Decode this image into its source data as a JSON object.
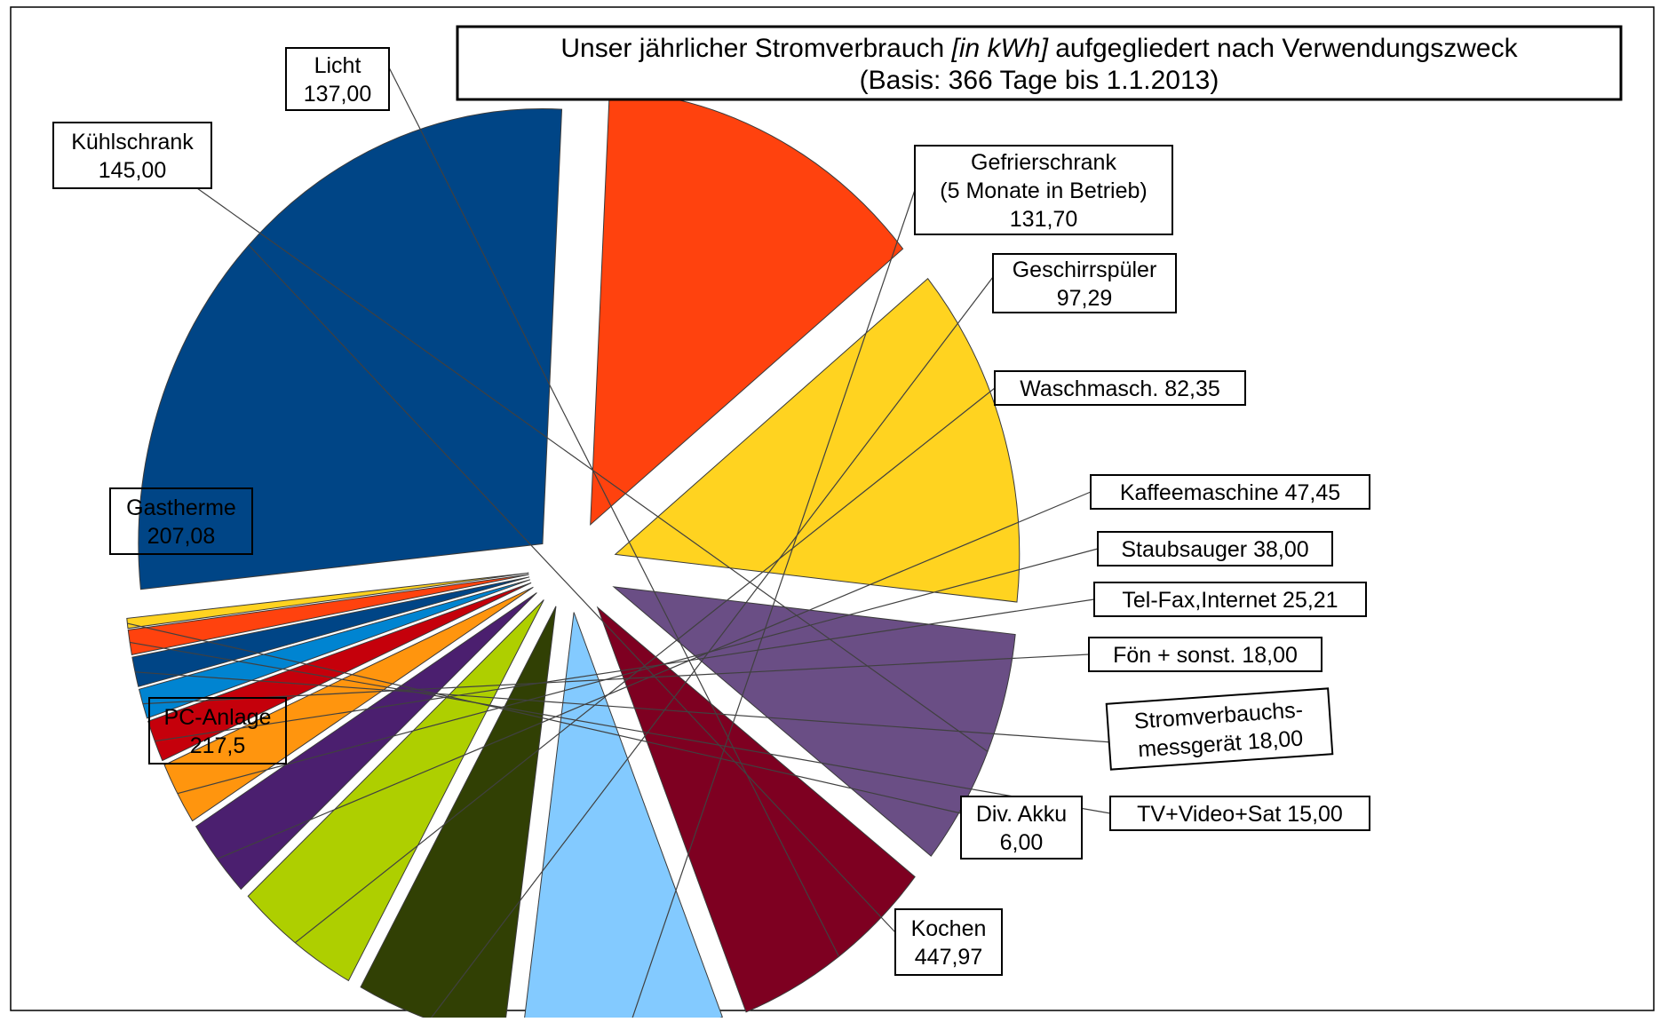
{
  "chart_data": {
    "type": "pie",
    "title_parts": [
      {
        "text": "Unser jährlicher Stromverbrauch ",
        "italic": false
      },
      {
        "text": "[in kWh]",
        "italic": true
      },
      {
        "text": " aufgegliedert nach Verwendungszweck",
        "italic": false
      }
    ],
    "subtitle": "(Basis: 366 Tage bis 1.1.2013)",
    "unit": "kWh",
    "legend": "none",
    "exploded": true,
    "slices": [
      {
        "key": "kochen",
        "value": 447.97,
        "label_lines": [
          "Kochen",
          "447,97"
        ],
        "color": "#004586"
      },
      {
        "key": "pc",
        "value": 217.5,
        "label_lines": [
          "PC-Anlage",
          "217,5"
        ],
        "color": "#FF420E"
      },
      {
        "key": "gastherme",
        "value": 207.08,
        "label_lines": [
          "Gastherme",
          "207,08"
        ],
        "color": "#FFD320"
      },
      {
        "key": "kuehlschrank",
        "value": 145.0,
        "label_lines": [
          "Kühlschrank",
          "145,00"
        ],
        "color": "#6A4E85"
      },
      {
        "key": "licht",
        "value": 137.0,
        "label_lines": [
          "Licht",
          "137,00"
        ],
        "color": "#7E0021"
      },
      {
        "key": "gefrierschrank",
        "value": 131.7,
        "label_lines": [
          "Gefrierschrank",
          "(5 Monate in Betrieb)",
          "131,70"
        ],
        "color": "#83CAFF"
      },
      {
        "key": "geschirr",
        "value": 97.29,
        "label_lines": [
          "Geschirrspüler",
          "97,29"
        ],
        "color": "#314004"
      },
      {
        "key": "wasch",
        "value": 82.35,
        "label_lines": [
          "Waschmasch. 82,35"
        ],
        "color": "#AECF00"
      },
      {
        "key": "kaffee",
        "value": 47.45,
        "label_lines": [
          "Kaffeemaschine 47,45"
        ],
        "color": "#4B1F6F"
      },
      {
        "key": "staub",
        "value": 38.0,
        "label_lines": [
          "Staubsauger 38,00"
        ],
        "color": "#FF950E"
      },
      {
        "key": "telfax",
        "value": 25.21,
        "label_lines": [
          "Tel-Fax,Internet 25,21"
        ],
        "color": "#C5000B"
      },
      {
        "key": "foen",
        "value": 18.0,
        "label_lines": [
          "Fön + sonst. 18,00"
        ],
        "color": "#0084D1"
      },
      {
        "key": "strommess",
        "value": 18.0,
        "label_lines": [
          "Stromverbauchs-",
          "messgerät 18,00"
        ],
        "color": "#004586"
      },
      {
        "key": "tv",
        "value": 15.0,
        "label_lines": [
          "TV+Video+Sat 15,00"
        ],
        "color": "#FF420E"
      },
      {
        "key": "akku",
        "value": 6.0,
        "label_lines": [
          "Div. Akku",
          "6,00"
        ],
        "color": "#FFD320"
      }
    ]
  }
}
